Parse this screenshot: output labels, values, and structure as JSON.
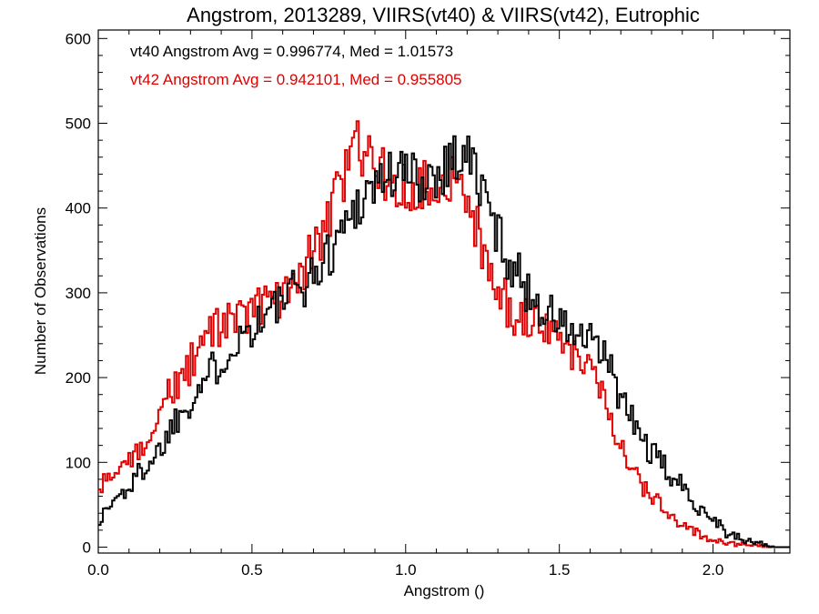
{
  "chart_data": {
    "type": "line",
    "title": "Angstrom, 2013289, VIIRS(vt40) & VIIRS(vt42), Eutrophic",
    "xlabel": "Angstrom ()",
    "ylabel": "Number of Observations",
    "xlim": [
      0.0,
      2.25
    ],
    "ylim": [
      0,
      600
    ],
    "xticks": [
      "0.0",
      "0.5",
      "1.0",
      "1.5",
      "2.0"
    ],
    "yticks": [
      "0",
      "100",
      "200",
      "300",
      "400",
      "500",
      "600"
    ],
    "grid": false,
    "step": true,
    "bin_width": 0.0075,
    "annotations": [
      {
        "text": "vt40 Angstrom Avg = 0.996774, Med = 1.01573",
        "color": "#000000"
      },
      {
        "text": "vt42 Angstrom Avg = 0.942101, Med = 0.955805",
        "color": "#e00000"
      }
    ],
    "series": [
      {
        "color": "#000000",
        "x": [
          0.0,
          0.05,
          0.1,
          0.15,
          0.2,
          0.25,
          0.3,
          0.35,
          0.4,
          0.45,
          0.5,
          0.55,
          0.6,
          0.65,
          0.7,
          0.75,
          0.8,
          0.85,
          0.9,
          0.95,
          1.0,
          1.05,
          1.1,
          1.15,
          1.2,
          1.25,
          1.3,
          1.35,
          1.4,
          1.45,
          1.5,
          1.55,
          1.6,
          1.65,
          1.7,
          1.75,
          1.8,
          1.85,
          1.9,
          1.95,
          2.0,
          2.05,
          2.1,
          2.15,
          2.2,
          2.25
        ],
        "y": [
          30,
          55,
          70,
          95,
          115,
          150,
          175,
          200,
          220,
          245,
          260,
          275,
          290,
          305,
          320,
          345,
          380,
          410,
          430,
          440,
          440,
          435,
          440,
          460,
          465,
          420,
          370,
          330,
          300,
          280,
          265,
          250,
          240,
          225,
          175,
          140,
          110,
          90,
          70,
          50,
          35,
          15,
          8,
          5,
          0,
          0
        ]
      },
      {
        "color": "#e00000",
        "x": [
          0.0,
          0.05,
          0.1,
          0.15,
          0.2,
          0.25,
          0.3,
          0.35,
          0.4,
          0.45,
          0.5,
          0.55,
          0.6,
          0.65,
          0.7,
          0.75,
          0.8,
          0.85,
          0.9,
          0.95,
          1.0,
          1.05,
          1.1,
          1.15,
          1.2,
          1.25,
          1.3,
          1.35,
          1.4,
          1.45,
          1.5,
          1.55,
          1.6,
          1.65,
          1.7,
          1.75,
          1.8,
          1.85,
          1.9,
          1.95,
          2.0,
          2.05,
          2.1,
          2.15,
          2.2,
          2.25
        ],
        "y": [
          65,
          90,
          95,
          125,
          165,
          190,
          215,
          245,
          260,
          270,
          275,
          285,
          300,
          320,
          345,
          395,
          440,
          475,
          450,
          430,
          425,
          430,
          425,
          440,
          420,
          350,
          305,
          275,
          270,
          255,
          240,
          230,
          210,
          175,
          120,
          85,
          60,
          40,
          25,
          15,
          8,
          5,
          3,
          2,
          0,
          0
        ]
      }
    ]
  }
}
